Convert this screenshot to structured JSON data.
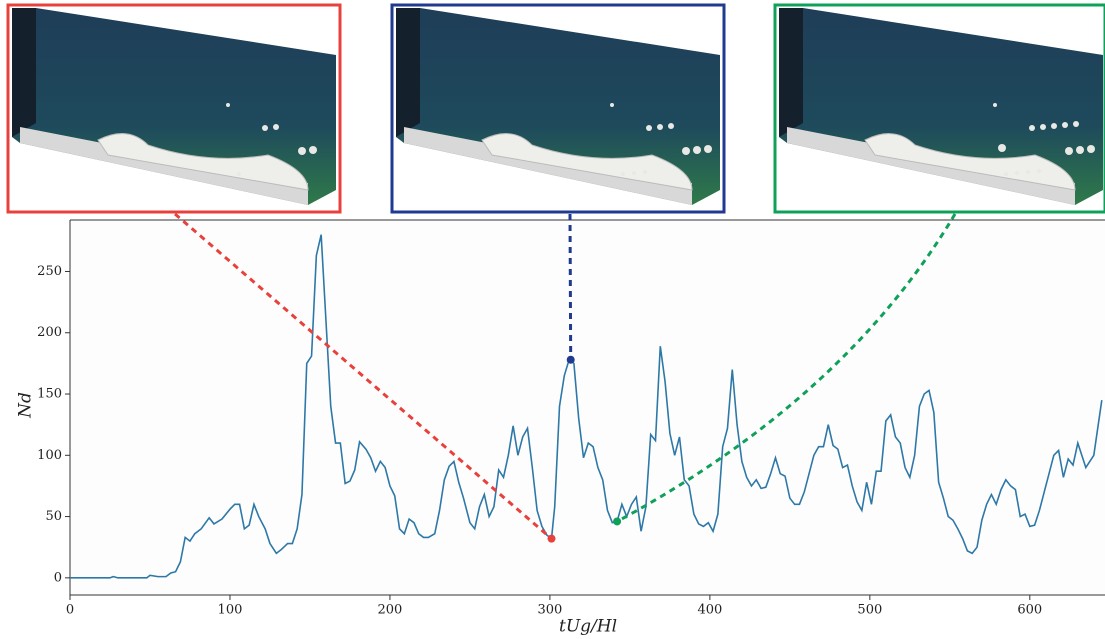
{
  "chart_data": {
    "type": "line",
    "x_label": "tUg/Hl",
    "y_label": "Nd",
    "x": [
      0,
      5,
      10,
      15,
      20,
      25,
      27,
      30,
      35,
      40,
      45,
      48,
      50,
      55,
      60,
      63,
      66,
      69,
      72,
      75,
      78,
      82,
      87,
      90,
      95,
      100,
      103,
      106,
      109,
      112,
      115,
      118,
      122,
      125,
      129,
      132,
      136,
      139,
      142,
      145,
      148,
      151,
      154,
      157,
      160,
      163,
      166,
      169,
      172,
      175,
      178,
      181,
      185,
      188,
      191,
      194,
      197,
      200,
      203,
      206,
      209,
      212,
      215,
      218,
      221,
      224,
      228,
      231,
      234,
      237,
      240,
      243,
      246,
      250,
      253,
      256,
      259,
      262,
      265,
      268,
      271,
      274,
      277,
      280,
      283,
      286,
      289,
      292,
      295,
      298,
      301,
      303,
      306,
      309,
      312,
      315,
      318,
      321,
      324,
      327,
      330,
      333,
      336,
      339,
      342,
      345,
      348,
      351,
      354,
      357,
      360,
      363,
      366,
      369,
      372,
      375,
      378,
      381,
      384,
      387,
      390,
      393,
      396,
      399,
      402,
      405,
      408,
      411,
      414,
      417,
      420,
      423,
      426,
      429,
      432,
      435,
      438,
      441,
      444,
      447,
      450,
      453,
      456,
      459,
      462,
      465,
      468,
      471,
      474,
      477,
      480,
      483,
      486,
      489,
      492,
      495,
      498,
      501,
      504,
      507,
      510,
      513,
      516,
      519,
      522,
      525,
      528,
      531,
      534,
      537,
      540,
      543,
      546,
      549,
      552,
      555,
      558,
      561,
      564,
      567,
      570,
      573,
      576,
      579,
      582,
      585,
      588,
      591,
      594,
      597,
      600,
      603,
      606,
      609,
      612,
      615,
      618,
      621,
      624,
      627,
      630,
      635,
      640,
      645
    ],
    "values": [
      0,
      0,
      0,
      0,
      0,
      0,
      1,
      0,
      0,
      0,
      0,
      0,
      2,
      1,
      1,
      4,
      5,
      13,
      33,
      30,
      36,
      40,
      49,
      44,
      48,
      56,
      60,
      60,
      40,
      43,
      60,
      50,
      40,
      28,
      20,
      23,
      28,
      28,
      40,
      68,
      175,
      181,
      263,
      280,
      210,
      140,
      110,
      110,
      77,
      79,
      88,
      111,
      105,
      98,
      87,
      95,
      90,
      75,
      67,
      40,
      36,
      48,
      45,
      36,
      33,
      33,
      36,
      55,
      80,
      91,
      95,
      78,
      65,
      45,
      40,
      58,
      68,
      50,
      58,
      88,
      82,
      100,
      124,
      100,
      115,
      122,
      90,
      55,
      42,
      35,
      32,
      58,
      140,
      165,
      178,
      175,
      130,
      98,
      110,
      107,
      90,
      80,
      55,
      45,
      46,
      60,
      50,
      60,
      66,
      38,
      58,
      117,
      112,
      189,
      160,
      118,
      100,
      115,
      80,
      75,
      52,
      44,
      42,
      45,
      38,
      52,
      107,
      122,
      170,
      125,
      95,
      82,
      75,
      80,
      73,
      74,
      85,
      98,
      85,
      83,
      65,
      60,
      60,
      70,
      85,
      100,
      107,
      107,
      125,
      108,
      105,
      90,
      92,
      75,
      62,
      55,
      78,
      60,
      87,
      87,
      128,
      133,
      115,
      110,
      90,
      82,
      100,
      140,
      150,
      153,
      135,
      78,
      65,
      50,
      47,
      40,
      32,
      22,
      20,
      25,
      47,
      60,
      68,
      60,
      72,
      80,
      75,
      72,
      50,
      52,
      42,
      43,
      55,
      70,
      85,
      100,
      104,
      82,
      97,
      92,
      110,
      90,
      100,
      145
    ],
    "color": "#2e78a8",
    "highlights": [
      {
        "x": 301,
        "y": 32,
        "color": "#e8413c"
      },
      {
        "x": 313,
        "y": 178,
        "color": "#1f3a8f"
      },
      {
        "x": 342,
        "y": 46,
        "color": "#0fa05a"
      }
    ],
    "xlim": [
      0,
      647
    ],
    "ylim": [
      -14,
      292
    ],
    "xticks": [
      0,
      100,
      200,
      300,
      400,
      500,
      600
    ],
    "yticks": [
      0,
      50,
      100,
      150,
      200,
      250
    ]
  }
}
